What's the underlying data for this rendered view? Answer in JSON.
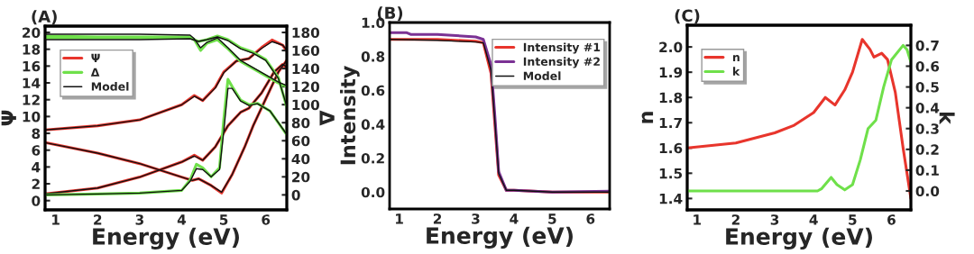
{
  "chart_data": [
    {
      "type": "line",
      "title": "(A)",
      "xlabel": "Energy (eV)",
      "ylabel": "Ψ",
      "y2label": "Δ",
      "xlim": [
        0.75,
        6.5
      ],
      "xticks": [
        1,
        2,
        3,
        4,
        5,
        6
      ],
      "ylim": [
        -1.1,
        20.75
      ],
      "yticks": [
        0,
        2,
        4,
        6,
        8,
        10,
        12,
        14,
        16,
        18,
        20
      ],
      "y2lim": [
        -16.6,
        187
      ],
      "y2ticks": [
        0,
        20,
        40,
        60,
        80,
        100,
        120,
        140,
        160,
        180
      ],
      "legend": "top left",
      "grid": false,
      "series": [
        {
          "name": "Ψ",
          "color": "#e8352c",
          "x": [
            0.75,
            2,
            3,
            4,
            4.3,
            4.5,
            4.8,
            5.0,
            5.3,
            5.6,
            5.9,
            6.15,
            6.4,
            6.5
          ],
          "values": [
            8.4,
            8.9,
            9.6,
            11.4,
            12.5,
            11.9,
            13.5,
            15.3,
            16.6,
            16.9,
            18.2,
            19.1,
            18.5,
            17.8
          ]
        },
        {
          "color": "#e8352c",
          "x": [
            0.75,
            2,
            3,
            4,
            4.25,
            4.4,
            4.7,
            4.95,
            5.2,
            5.5,
            5.7,
            6.0,
            6.3,
            6.5
          ],
          "values": [
            6.9,
            5.65,
            4.4,
            2.8,
            2.4,
            2.6,
            1.8,
            0.9,
            3.1,
            6.4,
            8.9,
            12.1,
            15.3,
            16.7
          ]
        },
        {
          "color": "#e8352c",
          "x": [
            0.75,
            2,
            3,
            4,
            4.3,
            4.5,
            4.8,
            5.1,
            5.4,
            5.6,
            5.9,
            6.2,
            6.4,
            6.5
          ],
          "values": [
            0.8,
            1.5,
            2.8,
            4.6,
            5.4,
            4.8,
            6.4,
            8.9,
            10.5,
            11.0,
            12.8,
            15.3,
            16.2,
            15.8
          ]
        },
        {
          "name": "Δ",
          "color": "#6fe04a",
          "axis": "y2",
          "x": [
            0.75,
            2,
            3,
            4.2,
            4.3,
            4.45,
            4.6,
            4.85,
            5.1,
            5.4,
            5.7,
            6.0,
            6.3,
            6.5
          ],
          "values": [
            176,
            175,
            175,
            175,
            172,
            160,
            168,
            172,
            162,
            148,
            140,
            132,
            124,
            120
          ]
        },
        {
          "color": "#6fe04a",
          "axis": "y2",
          "x": [
            0.75,
            2,
            3,
            4.2,
            4.4,
            4.6,
            4.85,
            5.1,
            5.4,
            5.7,
            6.0,
            6.3,
            6.5
          ],
          "values": [
            174,
            174,
            174,
            174,
            170,
            172,
            176,
            172,
            163,
            158,
            150,
            130,
            97
          ]
        },
        {
          "color": "#6fe04a",
          "axis": "y2",
          "x": [
            0.75,
            2,
            3,
            4.0,
            4.2,
            4.35,
            4.5,
            4.7,
            4.9,
            5.0,
            5.1,
            5.2,
            5.4,
            5.6,
            5.8,
            6.1,
            6.5
          ],
          "values": [
            0,
            1,
            2,
            5,
            16.6,
            34,
            30,
            20,
            30,
            83,
            128,
            120,
            105,
            100,
            101.5,
            93,
            66.5
          ]
        },
        {
          "name": "Model",
          "color": "#111111",
          "x": [
            0.75,
            2,
            3,
            4,
            4.3,
            4.5,
            4.8,
            5.0,
            5.3,
            5.6,
            5.9,
            6.15,
            6.4,
            6.5
          ],
          "values": [
            8.4,
            8.9,
            9.6,
            11.4,
            12.4,
            11.9,
            13.4,
            15.2,
            16.6,
            16.9,
            18.1,
            18.9,
            18.5,
            17.9
          ]
        },
        {
          "color": "#111111",
          "x": [
            0.75,
            2,
            3,
            4,
            4.25,
            4.4,
            4.7,
            4.95,
            5.2,
            5.5,
            5.7,
            6.0,
            6.3,
            6.5
          ],
          "values": [
            6.9,
            5.65,
            4.4,
            2.8,
            2.4,
            2.6,
            1.8,
            1.0,
            3.1,
            6.4,
            8.9,
            12.1,
            15.3,
            16.7
          ]
        },
        {
          "color": "#111111",
          "x": [
            0.75,
            2,
            3,
            4,
            4.3,
            4.5,
            4.8,
            5.1,
            5.4,
            5.6,
            5.9,
            6.2,
            6.4,
            6.5
          ],
          "values": [
            0.8,
            1.5,
            2.8,
            4.6,
            5.3,
            4.8,
            6.4,
            8.9,
            10.5,
            11.0,
            12.8,
            15.3,
            16.2,
            15.9
          ]
        },
        {
          "color": "#111111",
          "axis": "y2",
          "x": [
            0.75,
            2,
            3,
            4.2,
            4.3,
            4.45,
            4.6,
            4.85,
            5.1,
            5.4,
            5.7,
            6.0,
            6.3,
            6.5
          ],
          "values": [
            178,
            178,
            178,
            177,
            173,
            163,
            169,
            174,
            163,
            149,
            141,
            133,
            125,
            121
          ]
        },
        {
          "color": "#111111",
          "axis": "y2",
          "x": [
            0.75,
            2,
            3,
            4.2,
            4.4,
            4.6,
            4.85,
            5.1,
            5.4,
            5.7,
            6.0,
            6.3,
            6.5
          ],
          "values": [
            172,
            172,
            172,
            173,
            170,
            172,
            175,
            171,
            162,
            157,
            149,
            129,
            98
          ]
        },
        {
          "color": "#111111",
          "axis": "y2",
          "x": [
            0.75,
            2,
            3,
            4.0,
            4.2,
            4.35,
            4.5,
            4.7,
            4.9,
            5.0,
            5.1,
            5.2,
            5.4,
            5.6,
            5.8,
            6.1,
            6.5
          ],
          "values": [
            0,
            1,
            2,
            5,
            15,
            29,
            28,
            20,
            28,
            70,
            118,
            118,
            104,
            99,
            101,
            93,
            67
          ]
        }
      ]
    },
    {
      "type": "line",
      "title": "(B)",
      "xlabel": "Energy (eV)",
      "ylabel": "Intensity",
      "xlim": [
        0.75,
        6.5
      ],
      "xticks": [
        1,
        2,
        3,
        4,
        5,
        6
      ],
      "ylim": [
        -0.1,
        1.0
      ],
      "yticks": [
        {
          "value": 0,
          "label": "0.0"
        },
        0.2,
        0.4,
        0.6,
        0.8,
        {
          "value": 1,
          "label": "1.0"
        }
      ],
      "legend": "top right",
      "grid": false,
      "series": [
        {
          "name": "Intensity #1",
          "color": "#e8352c",
          "x": [
            0.75,
            2,
            3,
            3.2,
            3.4,
            3.5,
            3.6,
            3.8,
            4.0,
            5,
            6.5
          ],
          "values": [
            0.9,
            0.9,
            0.89,
            0.88,
            0.7,
            0.4,
            0.1,
            0.01,
            0.01,
            0,
            0
          ]
        },
        {
          "name": "Intensity #2",
          "color": "#7b3294",
          "x": [
            0.75,
            1.2,
            1.3,
            2,
            3,
            3.2,
            3.4,
            3.5,
            3.6,
            3.8,
            4.0,
            5,
            6.5
          ],
          "values": [
            0.94,
            0.94,
            0.93,
            0.93,
            0.915,
            0.9,
            0.75,
            0.45,
            0.12,
            0.01,
            0.01,
            0,
            0.005
          ]
        },
        {
          "name": "Model",
          "color": "#111111",
          "x": [
            0.75,
            2,
            3,
            3.2,
            3.4,
            3.5,
            3.6,
            3.8,
            4.0,
            5,
            6.5
          ],
          "values": [
            0.9,
            0.895,
            0.885,
            0.88,
            0.72,
            0.42,
            0.11,
            0.01,
            0.01,
            0,
            0
          ]
        }
      ]
    },
    {
      "type": "line",
      "title": "(C)",
      "xlabel": "Energy (eV)",
      "ylabel": "n",
      "y2label": "k",
      "xlim": [
        0.75,
        6.5
      ],
      "xticks": [
        1,
        2,
        3,
        4,
        5,
        6
      ],
      "ylim": [
        1.355,
        2.086
      ],
      "yticks": [
        1.4,
        1.5,
        1.6,
        1.7,
        1.8,
        1.9,
        {
          "value": 2,
          "label": "2.0"
        }
      ],
      "y2lim": [
        -0.091,
        0.797
      ],
      "y2ticks": [
        {
          "value": 0,
          "label": "0.0"
        },
        0.1,
        0.2,
        0.3,
        0.4,
        0.5,
        0.6,
        0.7
      ],
      "legend": "top left",
      "grid": false,
      "series": [
        {
          "name": "n",
          "color": "#e8352c",
          "x": [
            0.75,
            2,
            3,
            3.5,
            4,
            4.3,
            4.55,
            4.8,
            5.0,
            5.25,
            5.45,
            5.55,
            5.75,
            5.9,
            6.1,
            6.3,
            6.5
          ],
          "values": [
            1.6,
            1.62,
            1.66,
            1.69,
            1.74,
            1.8,
            1.77,
            1.83,
            1.9,
            2.03,
            1.99,
            1.96,
            1.975,
            1.95,
            1.82,
            1.6,
            1.4
          ]
        },
        {
          "name": "k",
          "color": "#6fe04a",
          "axis": "y2",
          "x": [
            0.75,
            2,
            3,
            4.1,
            4.2,
            4.45,
            4.6,
            4.8,
            5.0,
            5.2,
            5.4,
            5.6,
            5.8,
            6.0,
            6.3,
            6.4,
            6.5
          ],
          "values": [
            0,
            0,
            0,
            0,
            0.01,
            0.065,
            0.03,
            0.005,
            0.03,
            0.15,
            0.3,
            0.34,
            0.5,
            0.63,
            0.7,
            0.68,
            0.62
          ]
        }
      ]
    }
  ]
}
